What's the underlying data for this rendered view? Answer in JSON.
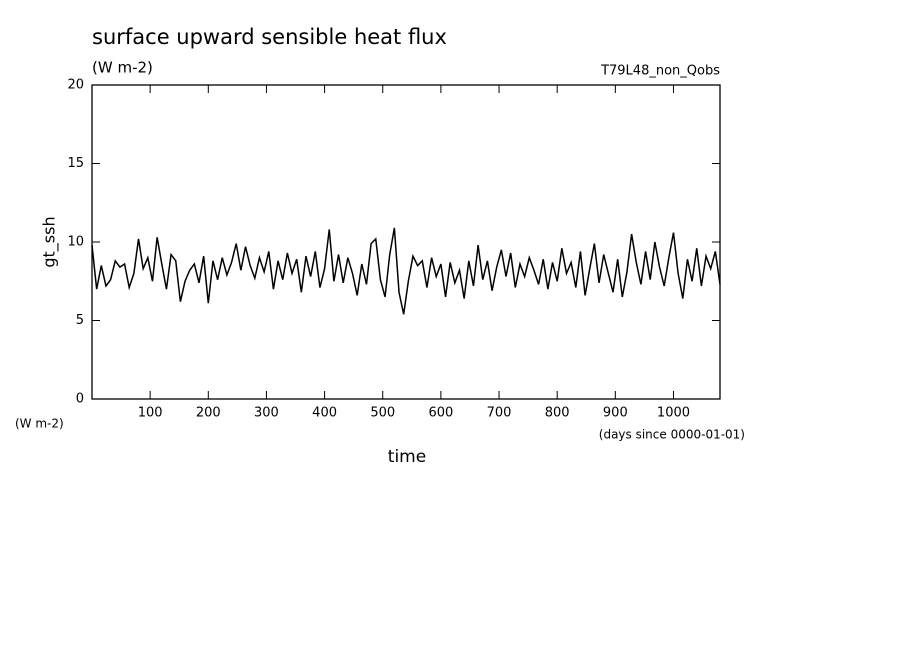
{
  "chart_data": {
    "type": "line",
    "title": "surface upward sensible heat flux",
    "subtitle": "(W m-2)",
    "annotation": "T79L48_non_Qobs",
    "y_label": "gt_ssh",
    "y_units": "(W m-2)",
    "x_label": "time",
    "x_units": "(days since 0000-01-01)",
    "color": "#000000",
    "xlim": [
      0,
      1080
    ],
    "xticks": [
      100,
      200,
      300,
      400,
      500,
      600,
      700,
      800,
      900,
      1000
    ],
    "ylim": [
      0,
      20
    ],
    "yticks": [
      0,
      5,
      10,
      15,
      20
    ],
    "x": [
      0,
      8,
      16,
      24,
      32,
      40,
      48,
      56,
      64,
      72,
      80,
      88,
      96,
      104,
      112,
      120,
      128,
      136,
      144,
      152,
      160,
      168,
      176,
      184,
      192,
      200,
      208,
      216,
      224,
      232,
      240,
      248,
      256,
      264,
      272,
      280,
      288,
      296,
      304,
      312,
      320,
      328,
      336,
      344,
      352,
      360,
      368,
      376,
      384,
      392,
      400,
      408,
      416,
      424,
      432,
      440,
      448,
      456,
      464,
      472,
      480,
      488,
      496,
      504,
      512,
      520,
      528,
      536,
      544,
      552,
      560,
      568,
      576,
      584,
      592,
      600,
      608,
      616,
      624,
      632,
      640,
      648,
      656,
      664,
      672,
      680,
      688,
      696,
      704,
      712,
      720,
      728,
      736,
      744,
      752,
      760,
      768,
      776,
      784,
      792,
      800,
      808,
      816,
      824,
      832,
      840,
      848,
      856,
      864,
      872,
      880,
      888,
      896,
      904,
      912,
      920,
      928,
      936,
      944,
      952,
      960,
      968,
      976,
      984,
      992,
      1000,
      1008,
      1016,
      1024,
      1032,
      1040,
      1048,
      1056,
      1064,
      1072,
      1080
    ],
    "values": [
      9.8,
      7.0,
      8.5,
      7.2,
      7.6,
      8.8,
      8.4,
      8.6,
      7.1,
      8.0,
      10.2,
      8.3,
      9.0,
      7.5,
      10.3,
      8.6,
      7.0,
      9.2,
      8.8,
      6.2,
      7.5,
      8.2,
      8.6,
      7.4,
      9.1,
      6.1,
      8.8,
      7.6,
      9.0,
      7.9,
      8.7,
      9.9,
      8.2,
      9.7,
      8.5,
      7.7,
      9.0,
      8.1,
      9.4,
      7.0,
      8.8,
      7.6,
      9.3,
      8.0,
      8.9,
      6.8,
      9.1,
      7.8,
      9.4,
      7.1,
      8.3,
      10.8,
      7.5,
      9.2,
      7.4,
      9.0,
      8.0,
      6.6,
      8.6,
      7.3,
      9.9,
      10.2,
      7.6,
      6.5,
      9.2,
      10.9,
      6.8,
      5.4,
      7.5,
      9.1,
      8.5,
      8.8,
      7.1,
      9.0,
      7.8,
      8.6,
      6.5,
      8.7,
      7.4,
      8.2,
      6.4,
      8.8,
      7.2,
      9.8,
      7.6,
      8.8,
      6.9,
      8.4,
      9.5,
      7.8,
      9.3,
      7.1,
      8.6,
      7.8,
      9.0,
      8.2,
      7.3,
      8.9,
      7.0,
      8.7,
      7.5,
      9.6,
      8.0,
      8.7,
      7.1,
      9.4,
      6.6,
      8.3,
      9.9,
      7.4,
      9.2,
      8.0,
      6.8,
      8.9,
      6.5,
      8.1,
      10.5,
      8.7,
      7.3,
      9.4,
      7.6,
      10.0,
      8.4,
      7.2,
      9.0,
      10.6,
      8.0,
      6.4,
      8.9,
      7.5,
      9.6,
      7.2,
      9.1,
      8.3,
      9.4,
      7.3
    ]
  }
}
